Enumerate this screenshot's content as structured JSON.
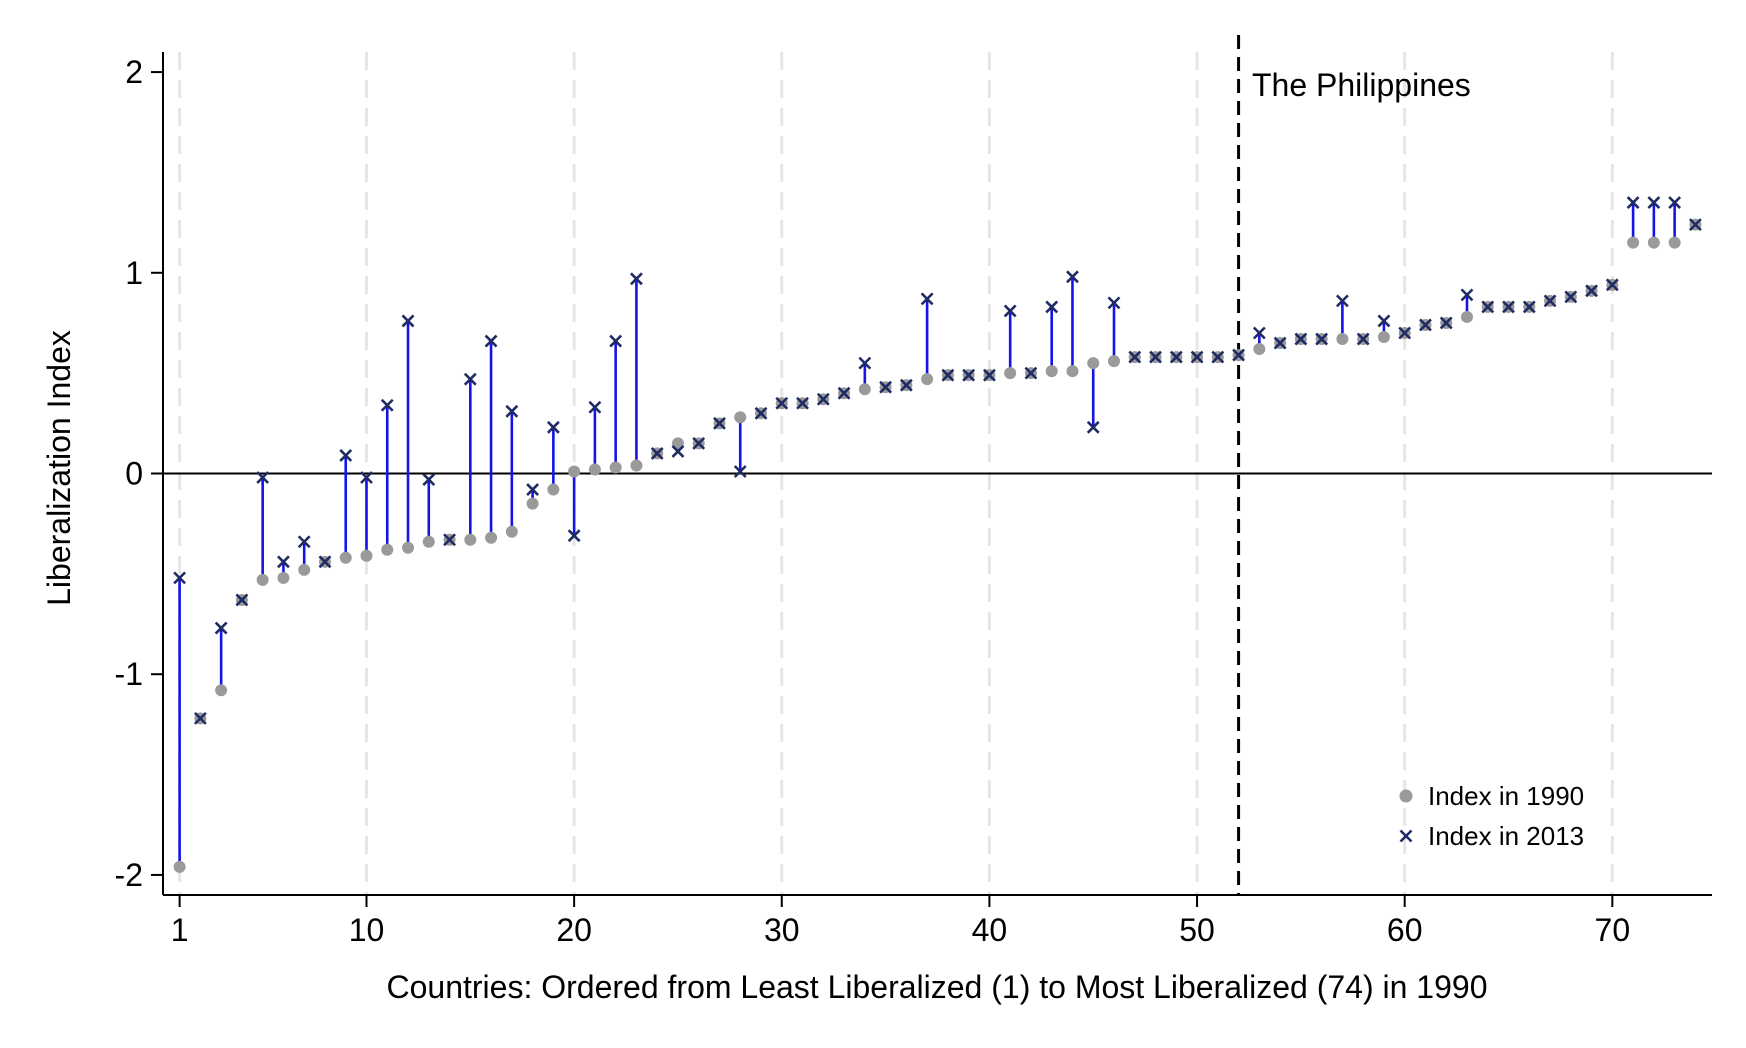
{
  "chart_data": {
    "type": "scatter",
    "title": "",
    "xlabel": "Countries: Ordered from Least Liberalized (1) to Most Liberalized (74) in 1990",
    "ylabel": "Liberalization Index",
    "xlim": [
      0.2,
      74.8
    ],
    "ylim": [
      -2.1,
      2.1
    ],
    "xticks": [
      1,
      10,
      20,
      30,
      40,
      50,
      60,
      70
    ],
    "xtick_labels": [
      "1",
      "10",
      "20",
      "30",
      "40",
      "50",
      "60",
      "70"
    ],
    "yticks": [
      2,
      1,
      0,
      -1,
      -2
    ],
    "ytick_labels": [
      "2",
      "1",
      "0",
      "-1",
      "-2"
    ],
    "grid": "vertical dashed at x ticks",
    "reference_line": {
      "y": 0
    },
    "annotation": {
      "x": 52,
      "text": "The Philippines",
      "style": "dashed vertical line"
    },
    "legend": {
      "position": "bottom-right"
    },
    "series": [
      {
        "name": "Index in 1990",
        "marker": "circle",
        "color": "#9a9a9a",
        "values": [
          -1.96,
          -1.22,
          -1.08,
          -0.63,
          -0.53,
          -0.52,
          -0.48,
          -0.44,
          -0.42,
          -0.41,
          -0.38,
          -0.37,
          -0.34,
          -0.33,
          -0.33,
          -0.32,
          -0.29,
          -0.15,
          -0.08,
          0.01,
          0.02,
          0.03,
          0.04,
          0.1,
          0.15,
          0.15,
          0.25,
          0.28,
          0.3,
          0.35,
          0.35,
          0.37,
          0.4,
          0.42,
          0.43,
          0.44,
          0.47,
          0.49,
          0.49,
          0.49,
          0.5,
          0.5,
          0.51,
          0.51,
          0.55,
          0.56,
          0.58,
          0.58,
          0.58,
          0.58,
          0.58,
          0.59,
          0.62,
          0.65,
          0.67,
          0.67,
          0.67,
          0.67,
          0.68,
          0.7,
          0.74,
          0.75,
          0.78,
          0.83,
          0.83,
          0.83,
          0.86,
          0.88,
          0.91,
          0.94,
          1.15,
          1.15,
          1.15,
          1.24
        ]
      },
      {
        "name": "Index in 2013",
        "marker": "x",
        "color": "#1f2b63",
        "values": [
          -0.52,
          -1.22,
          -0.77,
          -0.63,
          -0.02,
          -0.44,
          -0.34,
          -0.44,
          0.09,
          -0.02,
          0.34,
          0.76,
          -0.03,
          -0.33,
          0.47,
          0.66,
          0.31,
          -0.08,
          0.23,
          -0.31,
          0.33,
          0.66,
          0.97,
          0.1,
          0.11,
          0.15,
          0.25,
          0.01,
          0.3,
          0.35,
          0.35,
          0.37,
          0.4,
          0.55,
          0.43,
          0.44,
          0.87,
          0.49,
          0.49,
          0.49,
          0.81,
          0.5,
          0.83,
          0.98,
          0.23,
          0.85,
          0.58,
          0.58,
          0.58,
          0.58,
          0.58,
          0.59,
          0.7,
          0.65,
          0.67,
          0.67,
          0.86,
          0.67,
          0.76,
          0.7,
          0.74,
          0.75,
          0.89,
          0.83,
          0.83,
          0.83,
          0.86,
          0.88,
          0.91,
          0.94,
          1.35,
          1.35,
          1.35,
          1.24
        ]
      }
    ]
  }
}
